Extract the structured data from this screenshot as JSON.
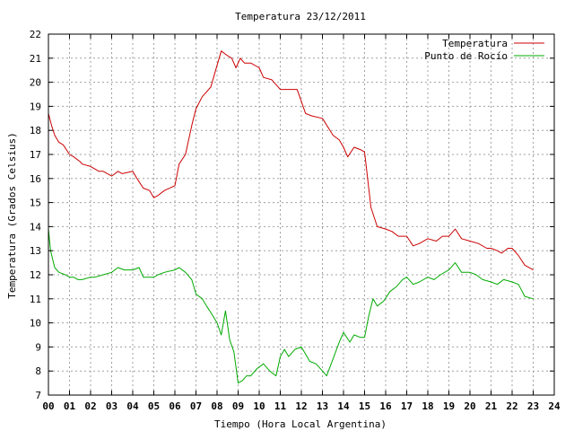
{
  "chart_data": {
    "type": "line",
    "title": "Temperatura 23/12/2011",
    "xlabel": "Tiempo (Hora Local Argentina)",
    "ylabel": "Temperatura (Grados Celsius)",
    "xlim": [
      0,
      24
    ],
    "ylim": [
      7,
      22
    ],
    "grid": true,
    "legend_position": "top-right",
    "x_tick_labels": [
      "00",
      "01",
      "02",
      "03",
      "04",
      "05",
      "06",
      "07",
      "08",
      "09",
      "10",
      "11",
      "12",
      "13",
      "14",
      "15",
      "16",
      "17",
      "18",
      "19",
      "20",
      "21",
      "22",
      "23",
      "24"
    ],
    "y_tick_labels": [
      "7",
      "8",
      "9",
      "10",
      "11",
      "12",
      "13",
      "14",
      "15",
      "16",
      "17",
      "18",
      "19",
      "20",
      "21",
      "22"
    ],
    "series": [
      {
        "name": "Temperatura",
        "color": "#cc0000",
        "x": [
          0.0,
          0.15,
          0.3,
          0.5,
          0.7,
          1.0,
          1.2,
          1.5,
          1.6,
          2.0,
          2.4,
          2.6,
          3.0,
          3.3,
          3.5,
          4.0,
          4.2,
          4.5,
          4.8,
          5.0,
          5.2,
          5.5,
          6.0,
          6.2,
          6.5,
          6.8,
          7.0,
          7.3,
          7.7,
          8.0,
          8.2,
          8.5,
          8.7,
          8.9,
          9.1,
          9.3,
          9.6,
          10.0,
          10.2,
          10.6,
          11.0,
          11.4,
          11.8,
          12.2,
          12.5,
          13.0,
          13.5,
          13.8,
          14.0,
          14.2,
          14.5,
          14.8,
          15.0,
          15.3,
          15.6,
          16.0,
          16.3,
          16.6,
          17.0,
          17.3,
          17.6,
          18.0,
          18.4,
          18.7,
          19.0,
          19.3,
          19.6,
          20.0,
          20.4,
          20.8,
          21.0,
          21.3,
          21.5,
          21.8,
          22.0,
          22.3,
          22.6,
          23.0
        ],
        "values": [
          18.7,
          18.2,
          17.8,
          17.5,
          17.4,
          17.0,
          16.9,
          16.7,
          16.6,
          16.5,
          16.3,
          16.3,
          16.1,
          16.3,
          16.2,
          16.3,
          16.0,
          15.6,
          15.5,
          15.2,
          15.3,
          15.5,
          15.7,
          16.6,
          17.0,
          18.2,
          18.9,
          19.4,
          19.8,
          20.7,
          21.3,
          21.1,
          21.0,
          20.6,
          21.0,
          20.8,
          20.8,
          20.6,
          20.2,
          20.1,
          19.7,
          19.7,
          19.7,
          18.7,
          18.6,
          18.5,
          17.8,
          17.6,
          17.3,
          16.9,
          17.3,
          17.2,
          17.1,
          14.8,
          14.0,
          13.9,
          13.8,
          13.6,
          13.6,
          13.2,
          13.3,
          13.5,
          13.4,
          13.6,
          13.6,
          13.9,
          13.5,
          13.4,
          13.3,
          13.1,
          13.1,
          13.0,
          12.9,
          13.1,
          13.1,
          12.8,
          12.4,
          12.2
        ]
      },
      {
        "name": "Punto de Rocío",
        "color": "#00aa00",
        "x": [
          0.0,
          0.1,
          0.3,
          0.5,
          0.8,
          1.0,
          1.2,
          1.4,
          1.6,
          2.0,
          2.2,
          2.6,
          3.0,
          3.3,
          3.6,
          4.0,
          4.3,
          4.5,
          4.8,
          5.0,
          5.2,
          5.5,
          6.0,
          6.2,
          6.5,
          6.8,
          7.0,
          7.3,
          7.5,
          7.8,
          8.0,
          8.2,
          8.4,
          8.6,
          8.8,
          9.0,
          9.2,
          9.4,
          9.6,
          9.9,
          10.2,
          10.5,
          10.8,
          11.0,
          11.2,
          11.4,
          11.7,
          12.0,
          12.2,
          12.4,
          12.7,
          13.0,
          13.2,
          13.5,
          13.8,
          14.0,
          14.3,
          14.5,
          14.8,
          15.0,
          15.2,
          15.4,
          15.6,
          15.9,
          16.2,
          16.5,
          16.8,
          17.0,
          17.3,
          17.6,
          18.0,
          18.3,
          18.6,
          19.0,
          19.3,
          19.6,
          20.0,
          20.3,
          20.6,
          21.0,
          21.3,
          21.6,
          22.0,
          22.3,
          22.6,
          23.0
        ],
        "values": [
          13.9,
          13.0,
          12.3,
          12.1,
          12.0,
          11.9,
          11.9,
          11.8,
          11.8,
          11.9,
          11.9,
          12.0,
          12.1,
          12.3,
          12.2,
          12.2,
          12.3,
          11.9,
          11.9,
          11.9,
          12.0,
          12.1,
          12.2,
          12.3,
          12.1,
          11.8,
          11.2,
          11.0,
          10.7,
          10.3,
          10.0,
          9.5,
          10.5,
          9.3,
          8.8,
          7.5,
          7.6,
          7.8,
          7.8,
          8.1,
          8.3,
          8.0,
          7.8,
          8.6,
          8.9,
          8.6,
          8.9,
          9.0,
          8.7,
          8.4,
          8.3,
          8.0,
          7.8,
          8.5,
          9.2,
          9.6,
          9.2,
          9.5,
          9.4,
          9.4,
          10.3,
          11.0,
          10.7,
          10.9,
          11.3,
          11.5,
          11.8,
          11.9,
          11.6,
          11.7,
          11.9,
          11.8,
          12.0,
          12.2,
          12.5,
          12.1,
          12.1,
          12.0,
          11.8,
          11.7,
          11.6,
          11.8,
          11.7,
          11.6,
          11.1,
          11.0
        ]
      }
    ]
  }
}
